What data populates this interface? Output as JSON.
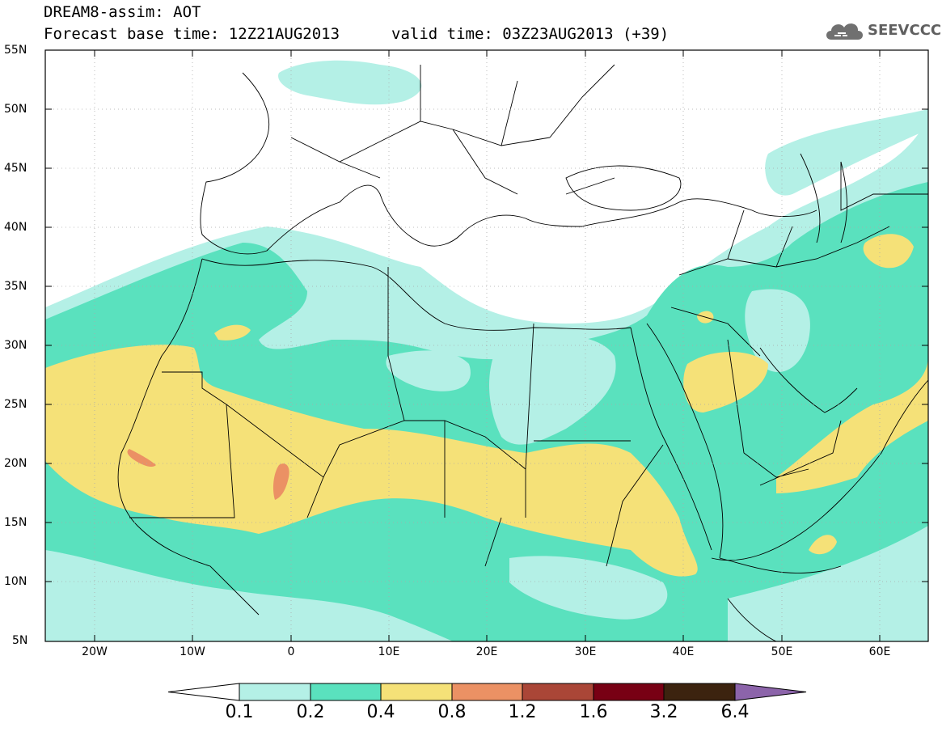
{
  "header": {
    "title": "DREAM8-assim: AOT",
    "base_time": "Forecast base time: 12Z21AUG2013",
    "valid_time": "valid time: 03Z23AUG2013 (+39)",
    "logo_text": "SEEVCCC",
    "logo_icon": "cloud-icon"
  },
  "map": {
    "lat_labels": [
      "55N",
      "50N",
      "45N",
      "40N",
      "35N",
      "30N",
      "25N",
      "20N",
      "15N",
      "10N",
      "5N"
    ],
    "lon_labels": [
      "20W",
      "10W",
      "0",
      "10E",
      "20E",
      "30E",
      "40E",
      "50E",
      "60E"
    ],
    "lon_range": [
      -25,
      65
    ],
    "lat_range": [
      5,
      55
    ],
    "grid": "dotted"
  },
  "colorbar": {
    "labels": [
      "0.1",
      "0.2",
      "0.4",
      "0.8",
      "1.2",
      "1.6",
      "3.2",
      "6.4"
    ],
    "colors": [
      "#b4f0e6",
      "#5ae1be",
      "#f5e178",
      "#eb9164",
      "#aa4637",
      "#780014",
      "#3c230f",
      "#8c64aa"
    ],
    "low_end_color": "#ffffff"
  }
}
